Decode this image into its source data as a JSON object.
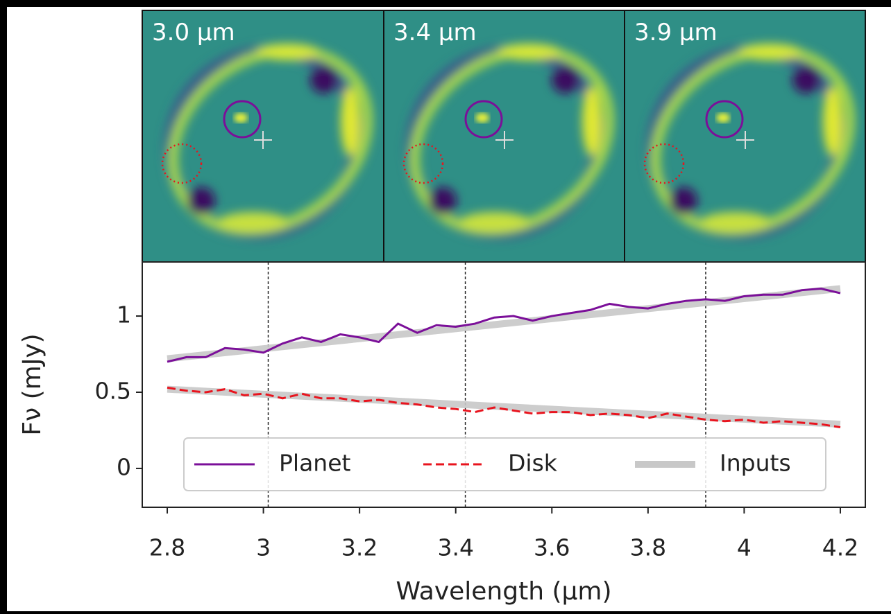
{
  "chart_data": {
    "type": "line",
    "panels": [
      {
        "label": "3.0 μm"
      },
      {
        "label": "3.4 μm"
      },
      {
        "label": "3.9 μm"
      }
    ],
    "xlabel": "Wavelength (μm)",
    "ylabel": "Fν (mJy)",
    "xlim": [
      2.748,
      4.252
    ],
    "ylim": [
      -0.255,
      1.355
    ],
    "xticks": [
      2.8,
      3.0,
      3.2,
      3.4,
      3.6,
      3.8,
      4.0,
      4.2
    ],
    "yticks": [
      0.0,
      0.5,
      1.0
    ],
    "vlines": [
      3.01,
      3.42,
      3.92
    ],
    "legend": "lower center",
    "x": [
      2.8,
      2.84,
      2.88,
      2.92,
      2.96,
      3.0,
      3.04,
      3.08,
      3.12,
      3.16,
      3.2,
      3.24,
      3.28,
      3.32,
      3.36,
      3.4,
      3.44,
      3.48,
      3.52,
      3.56,
      3.6,
      3.64,
      3.68,
      3.72,
      3.76,
      3.8,
      3.84,
      3.88,
      3.92,
      3.96,
      4.0,
      4.04,
      4.08,
      4.12,
      4.16,
      4.2
    ],
    "series": [
      {
        "name": "Planet",
        "color": "#7b0f99",
        "dash": "solid",
        "values": [
          0.7,
          0.73,
          0.73,
          0.79,
          0.78,
          0.76,
          0.82,
          0.86,
          0.83,
          0.88,
          0.86,
          0.83,
          0.95,
          0.89,
          0.94,
          0.93,
          0.95,
          0.99,
          1.0,
          0.97,
          1.0,
          1.02,
          1.04,
          1.08,
          1.06,
          1.05,
          1.08,
          1.1,
          1.11,
          1.1,
          1.13,
          1.14,
          1.14,
          1.17,
          1.18,
          1.15
        ]
      },
      {
        "name": "Disk",
        "color": "#e8141e",
        "dash": "dashed",
        "values": [
          0.53,
          0.51,
          0.5,
          0.52,
          0.48,
          0.49,
          0.46,
          0.49,
          0.46,
          0.46,
          0.44,
          0.45,
          0.43,
          0.42,
          0.4,
          0.39,
          0.37,
          0.4,
          0.38,
          0.36,
          0.37,
          0.37,
          0.35,
          0.36,
          0.35,
          0.33,
          0.36,
          0.34,
          0.32,
          0.31,
          0.32,
          0.3,
          0.31,
          0.3,
          0.29,
          0.27
        ]
      }
    ],
    "inputs": {
      "name": "Inputs",
      "color": "#c8c8c8",
      "lines": [
        {
          "x": [
            2.8,
            4.2
          ],
          "values": [
            0.72,
            1.18
          ]
        },
        {
          "x": [
            2.8,
            4.2
          ],
          "values": [
            0.52,
            0.29
          ]
        }
      ]
    }
  }
}
